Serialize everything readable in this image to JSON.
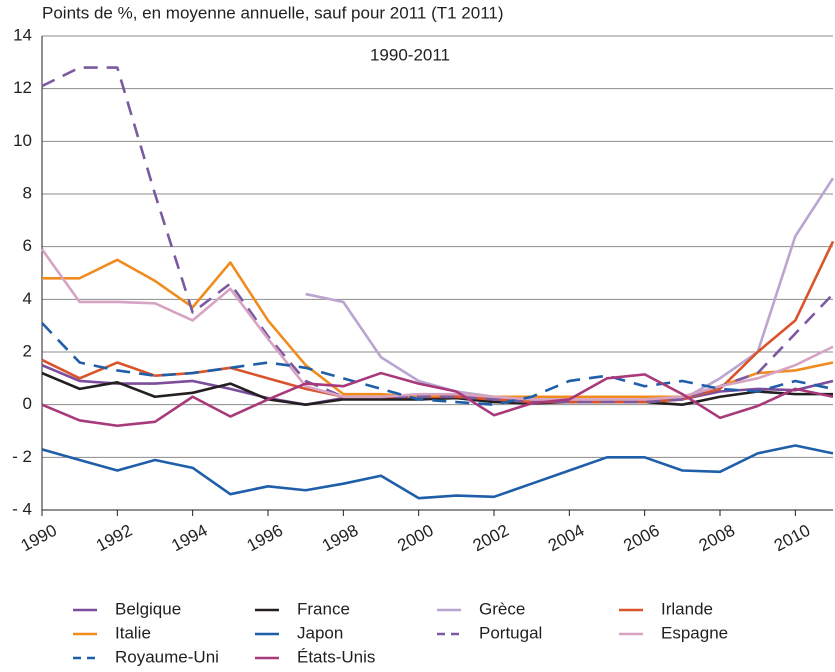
{
  "chart_data": {
    "type": "line",
    "ylabel": "Points de %, en moyenne annuelle, sauf pour 2011 (T1 2011)",
    "annotation": "1990-2011",
    "x": [
      1990,
      1991,
      1992,
      1993,
      1994,
      1995,
      1996,
      1997,
      1998,
      1999,
      2000,
      2001,
      2002,
      2003,
      2004,
      2005,
      2006,
      2007,
      2008,
      2009,
      2010,
      2011
    ],
    "xlim": [
      1990,
      2011
    ],
    "xticks": [
      1990,
      1992,
      1994,
      1996,
      1998,
      2000,
      2002,
      2004,
      2006,
      2008,
      2010
    ],
    "ylim": [
      -4,
      14
    ],
    "yticks": [
      {
        "value": -4,
        "label": "- 4"
      },
      {
        "value": -2,
        "label": "- 2"
      },
      0,
      2,
      4,
      6,
      8,
      10,
      12,
      14
    ],
    "grid": true,
    "legend": "bottom",
    "series": [
      {
        "name": "Belgique",
        "color": "#7b4d9a",
        "dashed": false,
        "values": [
          1.5,
          0.9,
          0.8,
          0.8,
          0.9,
          0.6,
          0.25,
          0.0,
          0.25,
          0.25,
          0.3,
          0.3,
          0.2,
          0.1,
          0.1,
          0.1,
          0.15,
          0.2,
          0.5,
          0.6,
          0.55,
          0.9
        ]
      },
      {
        "name": "France",
        "color": "#231f20",
        "dashed": false,
        "values": [
          1.2,
          0.6,
          0.85,
          0.3,
          0.45,
          0.8,
          0.2,
          0.0,
          0.2,
          0.2,
          0.2,
          0.25,
          0.1,
          0.05,
          0.1,
          0.1,
          0.1,
          0.0,
          0.3,
          0.5,
          0.4,
          0.4
        ]
      },
      {
        "name": "Grèce",
        "color": "#b9a5d0",
        "dashed": false,
        "values": [
          null,
          null,
          null,
          null,
          null,
          null,
          null,
          4.2,
          3.9,
          1.8,
          0.9,
          0.5,
          0.3,
          0.2,
          0.2,
          0.1,
          0.1,
          0.2,
          1.0,
          2.0,
          6.4,
          8.6
        ]
      },
      {
        "name": "Irlande",
        "color": "#d9532b",
        "dashed": false,
        "values": [
          1.7,
          1.0,
          1.6,
          1.1,
          1.2,
          1.4,
          1.0,
          0.6,
          0.3,
          0.3,
          0.3,
          0.3,
          0.2,
          0.1,
          0.1,
          0.1,
          0.1,
          0.2,
          0.6,
          2.0,
          3.2,
          6.2
        ]
      },
      {
        "name": "Italie",
        "color": "#f08c1e",
        "dashed": false,
        "values": [
          4.8,
          4.8,
          5.5,
          4.7,
          3.7,
          5.4,
          3.2,
          1.5,
          0.4,
          0.4,
          0.3,
          0.4,
          0.3,
          0.3,
          0.3,
          0.3,
          0.3,
          0.3,
          0.7,
          1.2,
          1.3,
          1.6
        ]
      },
      {
        "name": "Japon",
        "color": "#1f5ea8",
        "dashed": false,
        "values": [
          -1.7,
          -2.1,
          -2.5,
          -2.1,
          -2.4,
          -3.4,
          -3.1,
          -3.25,
          -3.0,
          -2.7,
          -3.55,
          -3.45,
          -3.5,
          -3.0,
          -2.5,
          -2.0,
          -2.0,
          -2.5,
          -2.55,
          -1.85,
          -1.55,
          -1.85
        ]
      },
      {
        "name": "Portugal",
        "color": "#7a5aa0",
        "dashed": true,
        "values": [
          12.1,
          12.8,
          12.8,
          8.0,
          3.5,
          4.6,
          2.6,
          0.9,
          0.3,
          0.3,
          0.3,
          0.3,
          0.2,
          0.1,
          0.1,
          0.1,
          0.1,
          0.2,
          0.7,
          1.2,
          2.7,
          4.2
        ]
      },
      {
        "name": "Espagne",
        "color": "#d7a3c3",
        "dashed": false,
        "values": [
          5.9,
          3.9,
          3.9,
          3.85,
          3.2,
          4.4,
          2.5,
          0.7,
          0.3,
          0.3,
          0.4,
          0.4,
          0.3,
          0.2,
          0.2,
          0.2,
          0.2,
          0.3,
          0.7,
          1.0,
          1.5,
          2.2
        ]
      },
      {
        "name": "Royaume-Uni",
        "color": "#1f5ea8",
        "dashed": true,
        "values": [
          3.1,
          1.6,
          1.3,
          1.1,
          1.2,
          1.4,
          1.6,
          1.4,
          1.0,
          0.6,
          0.2,
          0.1,
          0.0,
          0.3,
          0.9,
          1.1,
          0.7,
          0.9,
          0.6,
          0.5,
          0.9,
          0.6
        ]
      },
      {
        "name": "États-Unis",
        "color": "#a8397a",
        "dashed": false,
        "values": [
          0.0,
          -0.6,
          -0.8,
          -0.65,
          0.3,
          -0.45,
          0.2,
          0.8,
          0.7,
          1.2,
          0.8,
          0.5,
          -0.4,
          0.05,
          0.2,
          1.0,
          1.15,
          0.4,
          -0.5,
          -0.05,
          0.6,
          0.3
        ]
      }
    ]
  }
}
